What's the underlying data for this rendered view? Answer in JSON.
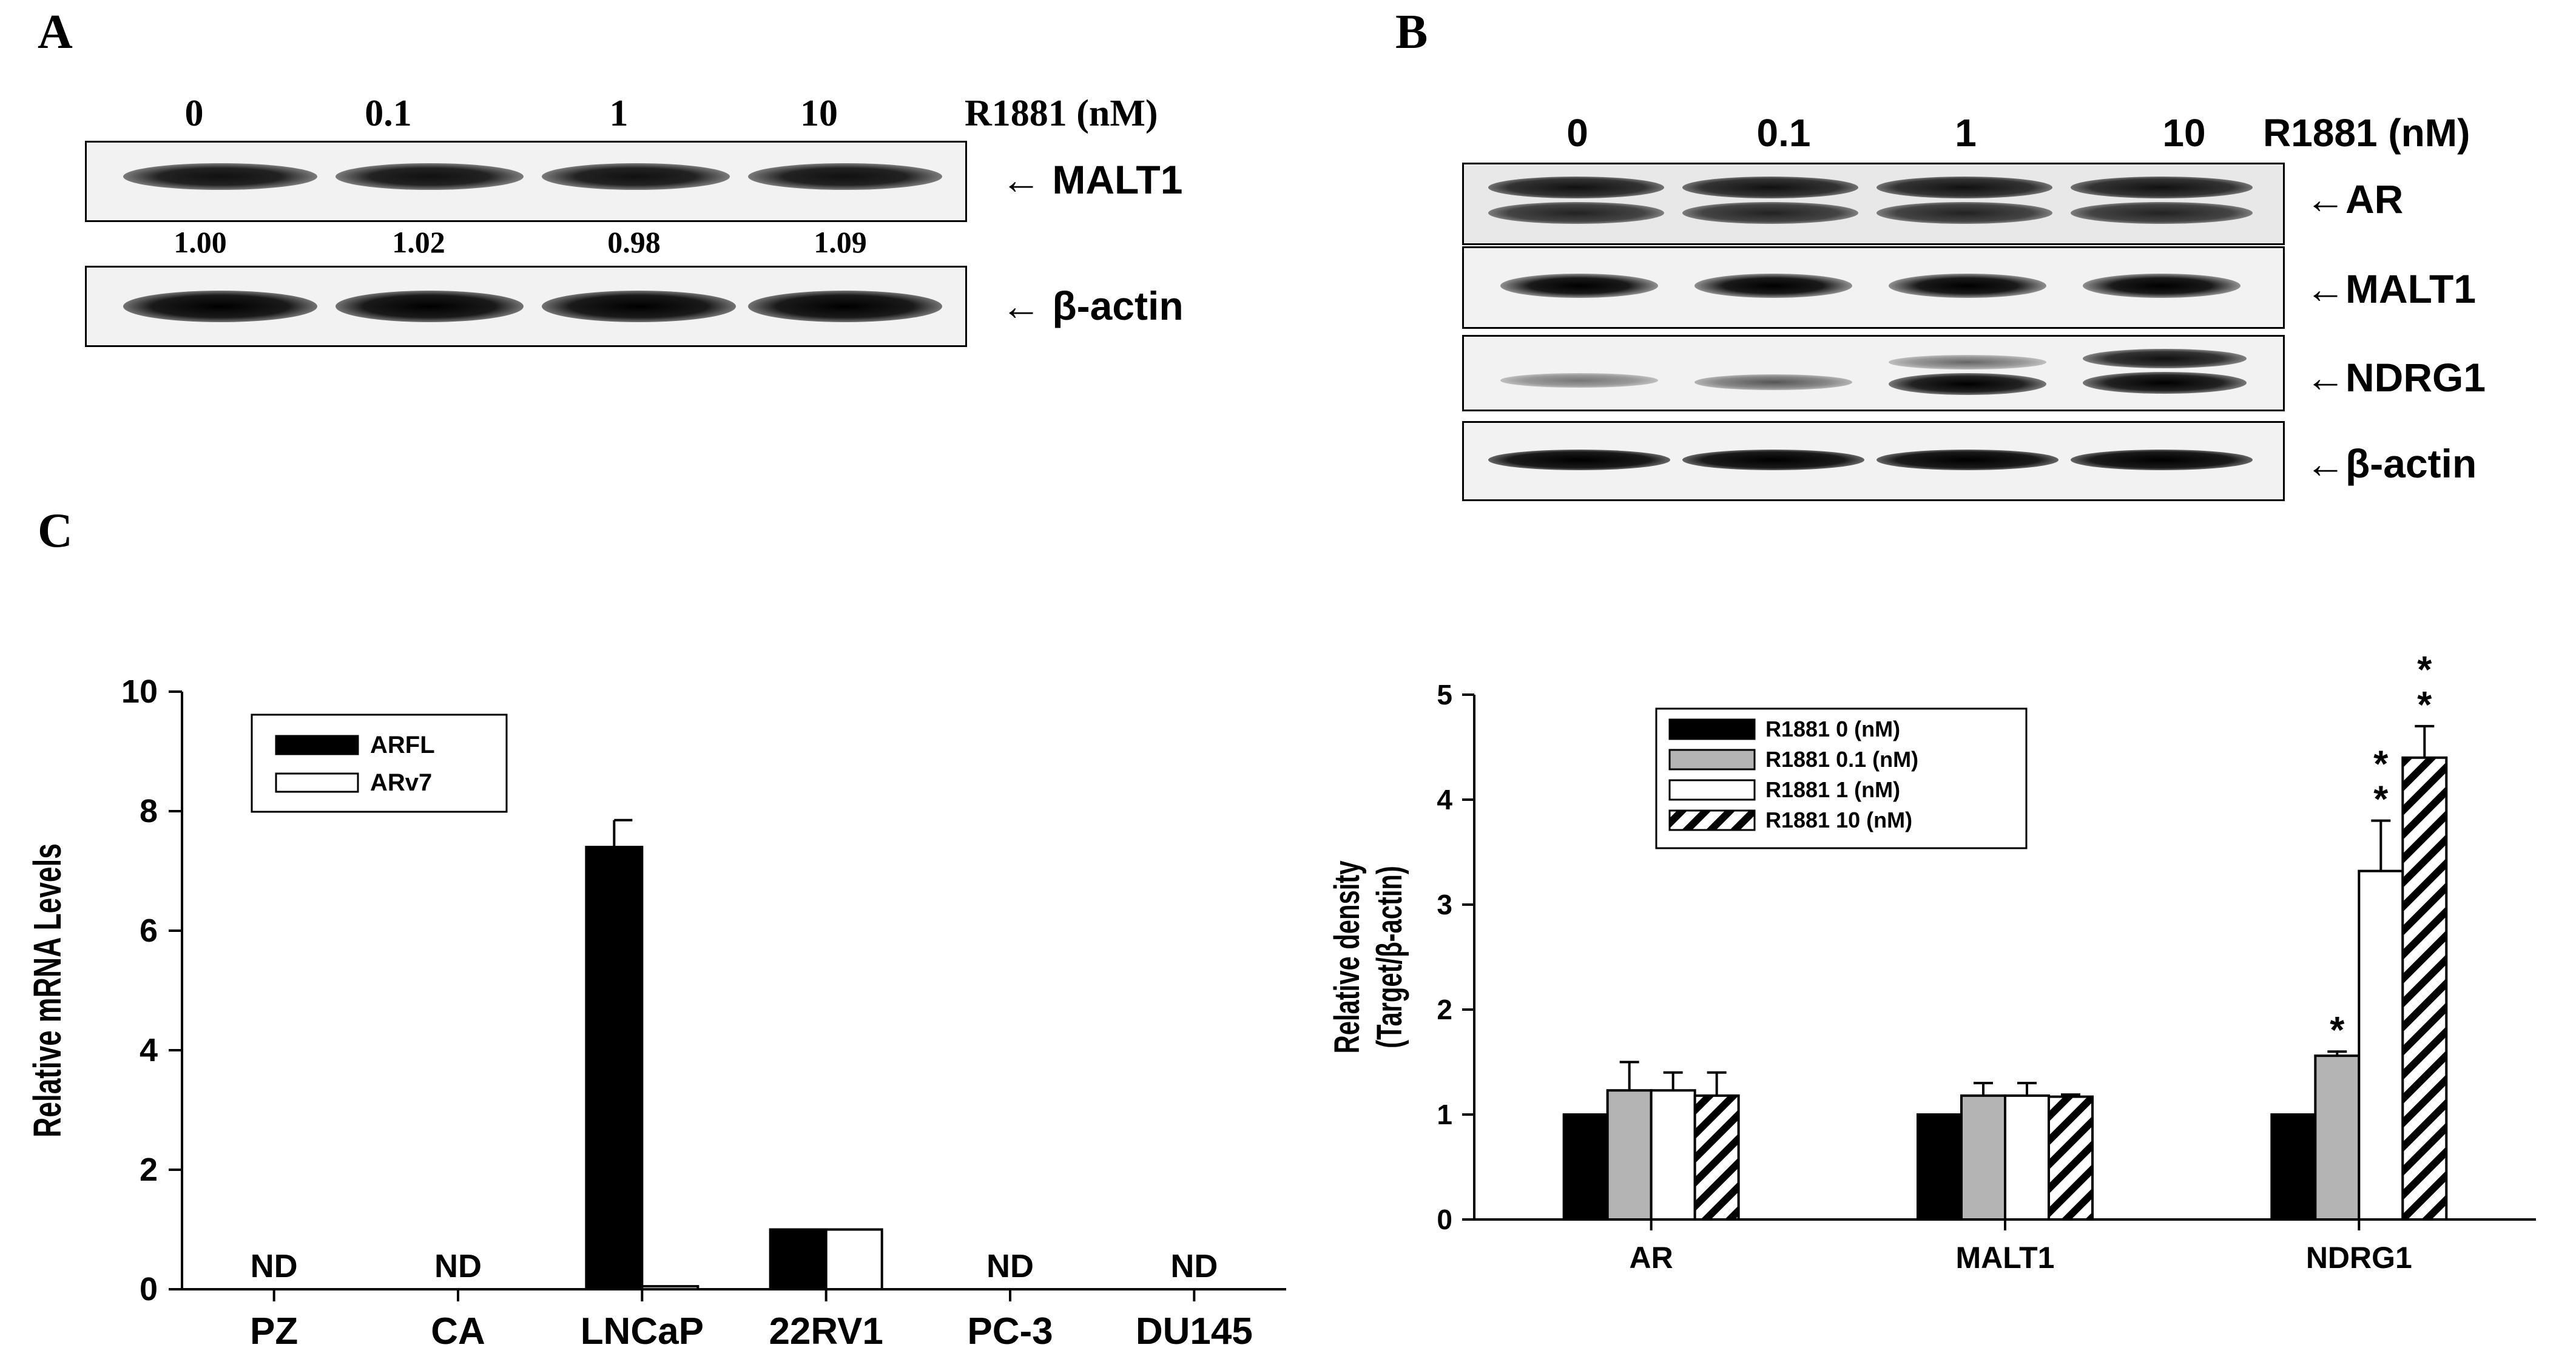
{
  "panel_a": {
    "letter": "A",
    "lanes": [
      "0",
      "0.1",
      "1",
      "10"
    ],
    "treatment_label": "R1881 (nM)",
    "blots": [
      {
        "label": "← MALT1",
        "icon": "left-arrow"
      },
      {
        "label": "← β-actin",
        "icon": "left-arrow"
      }
    ],
    "quantification": [
      "1.00",
      "1.02",
      "0.98",
      "1.09"
    ]
  },
  "panel_b": {
    "letter": "B",
    "lanes": [
      "0",
      "0.1",
      "1",
      "10"
    ],
    "treatment_label": "R1881 (nM)",
    "blots": [
      {
        "label": "←AR"
      },
      {
        "label": "←MALT1"
      },
      {
        "label": "←NDRG1"
      },
      {
        "label": "←β-actin"
      }
    ]
  },
  "panel_c": {
    "letter": "C"
  },
  "chart_data": [
    {
      "type": "bar",
      "ylabel": "Relative mRNA Levels",
      "xlabel": "",
      "ylim": [
        0,
        10
      ],
      "yticks": [
        0,
        2,
        4,
        6,
        8,
        10
      ],
      "categories": [
        "PZ",
        "CA",
        "LNCaP",
        "22RV1",
        "PC-3",
        "DU145"
      ],
      "series": [
        {
          "name": "ARFL",
          "color": "#000000",
          "values": [
            null,
            null,
            7.4,
            1.0,
            null,
            null
          ],
          "errors": [
            null,
            null,
            0.45,
            0,
            null,
            null
          ]
        },
        {
          "name": "ARv7",
          "color": "#ffffff",
          "values": [
            null,
            null,
            0.05,
            1.0,
            null,
            null
          ],
          "errors": [
            null,
            null,
            0,
            0,
            null,
            null
          ]
        }
      ],
      "annotations": [
        {
          "category": "PZ",
          "text": "ND"
        },
        {
          "category": "CA",
          "text": "ND"
        },
        {
          "category": "PC-3",
          "text": "ND"
        },
        {
          "category": "DU145",
          "text": "ND"
        }
      ],
      "legend": "top-left",
      "grid": false
    },
    {
      "type": "bar",
      "ylabel": "Relative density",
      "ylabel2": "(Target/β-actin)",
      "xlabel": "",
      "ylim": [
        0,
        5
      ],
      "yticks": [
        0,
        1,
        2,
        3,
        4,
        5
      ],
      "categories": [
        "AR",
        "MALT1",
        "NDRG1"
      ],
      "series": [
        {
          "name": "R1881 0 (nM)",
          "fill": "black",
          "values": [
            1.0,
            1.0,
            1.0
          ],
          "errors": [
            0,
            0,
            0
          ]
        },
        {
          "name": "R1881 0.1 (nM)",
          "fill": "gray",
          "values": [
            1.23,
            1.18,
            1.56
          ],
          "errors": [
            0.27,
            0.12,
            0.04
          ]
        },
        {
          "name": "R1881 1 (nM)",
          "fill": "white",
          "values": [
            1.23,
            1.18,
            3.32
          ],
          "errors": [
            0.17,
            0.12,
            0.48
          ]
        },
        {
          "name": "R1881 10 (nM)",
          "fill": "hatch",
          "values": [
            1.18,
            1.17,
            4.4
          ],
          "errors": [
            0.22,
            0.02,
            0.3
          ]
        }
      ],
      "significance": [
        {
          "category": "NDRG1",
          "series": 1,
          "text": "*"
        },
        {
          "category": "NDRG1",
          "series": 2,
          "text": "* *"
        },
        {
          "category": "NDRG1",
          "series": 3,
          "text": "* *"
        }
      ],
      "legend": "top-left",
      "grid": false
    }
  ]
}
